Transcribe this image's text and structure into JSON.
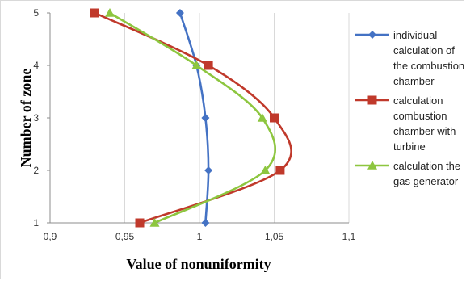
{
  "chart_data": {
    "type": "line",
    "title": "",
    "xlabel": "Value of nonuniformity",
    "ylabel": "Number of zone",
    "xlim": [
      0.9,
      1.1
    ],
    "ylim": [
      1,
      5
    ],
    "x_ticks": [
      "0,9",
      "0,95",
      "1",
      "1,05",
      "1,1"
    ],
    "y_ticks": [
      "1",
      "2",
      "3",
      "4",
      "5"
    ],
    "grid": "vertical",
    "legend_position": "right",
    "series": [
      {
        "name": "individual calculation of the combustion chamber",
        "legend_lines": [
          "individual",
          "calculation of",
          "the combustion",
          "chamber"
        ],
        "color": "#4472C4",
        "marker": "diamond",
        "points": [
          {
            "x": 1.004,
            "y": 1
          },
          {
            "x": 1.006,
            "y": 2
          },
          {
            "x": 1.004,
            "y": 3
          },
          {
            "x": 0.998,
            "y": 4
          },
          {
            "x": 0.987,
            "y": 5
          }
        ]
      },
      {
        "name": "calculation combustion chamber with turbine",
        "legend_lines": [
          "calculation",
          "combustion",
          "chamber with",
          "turbine"
        ],
        "color": "#C0392B",
        "marker": "square",
        "points": [
          {
            "x": 0.96,
            "y": 1
          },
          {
            "x": 1.054,
            "y": 2
          },
          {
            "x": 1.05,
            "y": 3
          },
          {
            "x": 1.006,
            "y": 4
          },
          {
            "x": 0.93,
            "y": 5
          }
        ]
      },
      {
        "name": "calculation the gas generator",
        "legend_lines": [
          "calculation the",
          "gas generator"
        ],
        "color": "#8DC63F",
        "marker": "triangle",
        "points": [
          {
            "x": 0.97,
            "y": 1
          },
          {
            "x": 1.044,
            "y": 2
          },
          {
            "x": 1.042,
            "y": 3
          },
          {
            "x": 0.998,
            "y": 4
          },
          {
            "x": 0.94,
            "y": 5
          }
        ]
      }
    ]
  }
}
